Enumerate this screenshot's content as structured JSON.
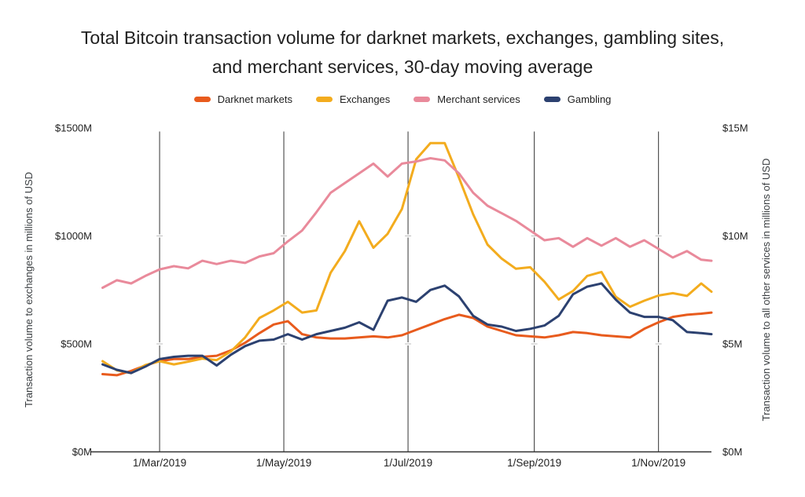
{
  "page": {
    "background": "#ffffff"
  },
  "chart_data": {
    "type": "line",
    "title": "Total Bitcoin transaction volume for darknet markets, exchanges, gambling sites, and merchant services, 30-day moving average",
    "subtitle": "",
    "legend_position": "top",
    "grid": "vertical-lines-only",
    "background": "#ffffff",
    "x_dates": [
      "1/Feb/2019",
      "8/Feb/2019",
      "15/Feb/2019",
      "22/Feb/2019",
      "1/Mar/2019",
      "8/Mar/2019",
      "15/Mar/2019",
      "22/Mar/2019",
      "29/Mar/2019",
      "5/Apr/2019",
      "12/Apr/2019",
      "19/Apr/2019",
      "26/Apr/2019",
      "3/May/2019",
      "10/May/2019",
      "17/May/2019",
      "24/May/2019",
      "31/May/2019",
      "7/Jun/2019",
      "14/Jun/2019",
      "21/Jun/2019",
      "28/Jun/2019",
      "5/Jul/2019",
      "12/Jul/2019",
      "19/Jul/2019",
      "26/Jul/2019",
      "2/Aug/2019",
      "9/Aug/2019",
      "16/Aug/2019",
      "23/Aug/2019",
      "30/Aug/2019",
      "6/Sep/2019",
      "13/Sep/2019",
      "20/Sep/2019",
      "27/Sep/2019",
      "4/Oct/2019",
      "11/Oct/2019",
      "18/Oct/2019",
      "25/Oct/2019",
      "1/Nov/2019",
      "8/Nov/2019",
      "15/Nov/2019",
      "22/Nov/2019",
      "27/Nov/2019"
    ],
    "x_days": [
      0,
      7,
      14,
      21,
      28,
      35,
      42,
      49,
      56,
      63,
      70,
      77,
      84,
      91,
      98,
      105,
      112,
      119,
      126,
      133,
      140,
      147,
      154,
      161,
      168,
      175,
      182,
      189,
      196,
      203,
      210,
      217,
      224,
      231,
      238,
      245,
      252,
      259,
      266,
      273,
      280,
      287,
      294,
      299
    ],
    "x_tick_labels": [
      "1/Mar/2019",
      "1/May/2019",
      "1/Jul/2019",
      "1/Sep/2019",
      "1/Nov/2019"
    ],
    "x_tick_days": [
      28,
      89,
      150,
      212,
      273
    ],
    "left_axis": {
      "label": "Transaction volume to exchanges in millions of USD",
      "tick_labels": [
        "$0M",
        "$500M",
        "$1000M",
        "$1500M"
      ],
      "tick_values": [
        0,
        500,
        1000,
        1500
      ],
      "range": [
        0,
        1500
      ],
      "applies_to": [
        "Exchanges"
      ]
    },
    "right_axis": {
      "label": "Transaction volume to all other services in millions of USD",
      "tick_labels": [
        "$0M",
        "$5M",
        "$10M",
        "$15M"
      ],
      "tick_values": [
        0,
        5,
        10,
        15
      ],
      "range": [
        0,
        15
      ],
      "applies_to": [
        "Darknet markets",
        "Merchant services",
        "Gambling"
      ]
    },
    "series": [
      {
        "name": "Darknet markets",
        "axis": "right",
        "unit": "millions of USD",
        "color": "#E85B1D",
        "values": [
          3.6,
          3.55,
          3.75,
          4.0,
          4.2,
          4.3,
          4.3,
          4.4,
          4.45,
          4.7,
          5.05,
          5.5,
          5.9,
          6.05,
          5.45,
          5.3,
          5.25,
          5.25,
          5.3,
          5.35,
          5.3,
          5.4,
          5.65,
          5.9,
          6.15,
          6.35,
          6.2,
          5.8,
          5.6,
          5.4,
          5.35,
          5.3,
          5.4,
          5.55,
          5.5,
          5.4,
          5.35,
          5.3,
          5.7,
          6.0,
          6.25,
          6.35,
          6.4,
          6.45
        ]
      },
      {
        "name": "Exchanges",
        "axis": "left",
        "unit": "millions of USD",
        "color": "#F3AC1E",
        "values": [
          420,
          378,
          365,
          402,
          420,
          405,
          418,
          432,
          425,
          465,
          530,
          620,
          655,
          695,
          645,
          655,
          830,
          930,
          1068,
          945,
          1010,
          1125,
          1355,
          1430,
          1430,
          1270,
          1100,
          960,
          895,
          848,
          855,
          788,
          706,
          745,
          815,
          833,
          718,
          672,
          700,
          724,
          735,
          722,
          780,
          742
        ]
      },
      {
        "name": "Merchant services",
        "axis": "right",
        "unit": "millions of USD",
        "color": "#E98A9B",
        "values": [
          7.6,
          7.95,
          7.8,
          8.15,
          8.45,
          8.6,
          8.5,
          8.85,
          8.7,
          8.85,
          8.75,
          9.05,
          9.2,
          9.75,
          10.25,
          11.1,
          12.0,
          12.45,
          12.9,
          13.35,
          12.75,
          13.35,
          13.45,
          13.6,
          13.5,
          12.9,
          12.0,
          11.4,
          11.05,
          10.7,
          10.25,
          9.8,
          9.9,
          9.5,
          9.9,
          9.55,
          9.9,
          9.5,
          9.8,
          9.4,
          9.0,
          9.3,
          8.9,
          8.85
        ]
      },
      {
        "name": "Gambling",
        "axis": "right",
        "unit": "millions of USD",
        "color": "#2C4170",
        "values": [
          4.05,
          3.8,
          3.65,
          3.95,
          4.3,
          4.4,
          4.45,
          4.45,
          4.0,
          4.5,
          4.9,
          5.15,
          5.2,
          5.45,
          5.2,
          5.45,
          5.6,
          5.75,
          6.0,
          5.65,
          7.0,
          7.15,
          6.95,
          7.5,
          7.7,
          7.2,
          6.3,
          5.9,
          5.8,
          5.6,
          5.7,
          5.85,
          6.3,
          7.3,
          7.65,
          7.8,
          7.05,
          6.45,
          6.25,
          6.25,
          6.1,
          5.55,
          5.5,
          5.45
        ]
      }
    ]
  }
}
